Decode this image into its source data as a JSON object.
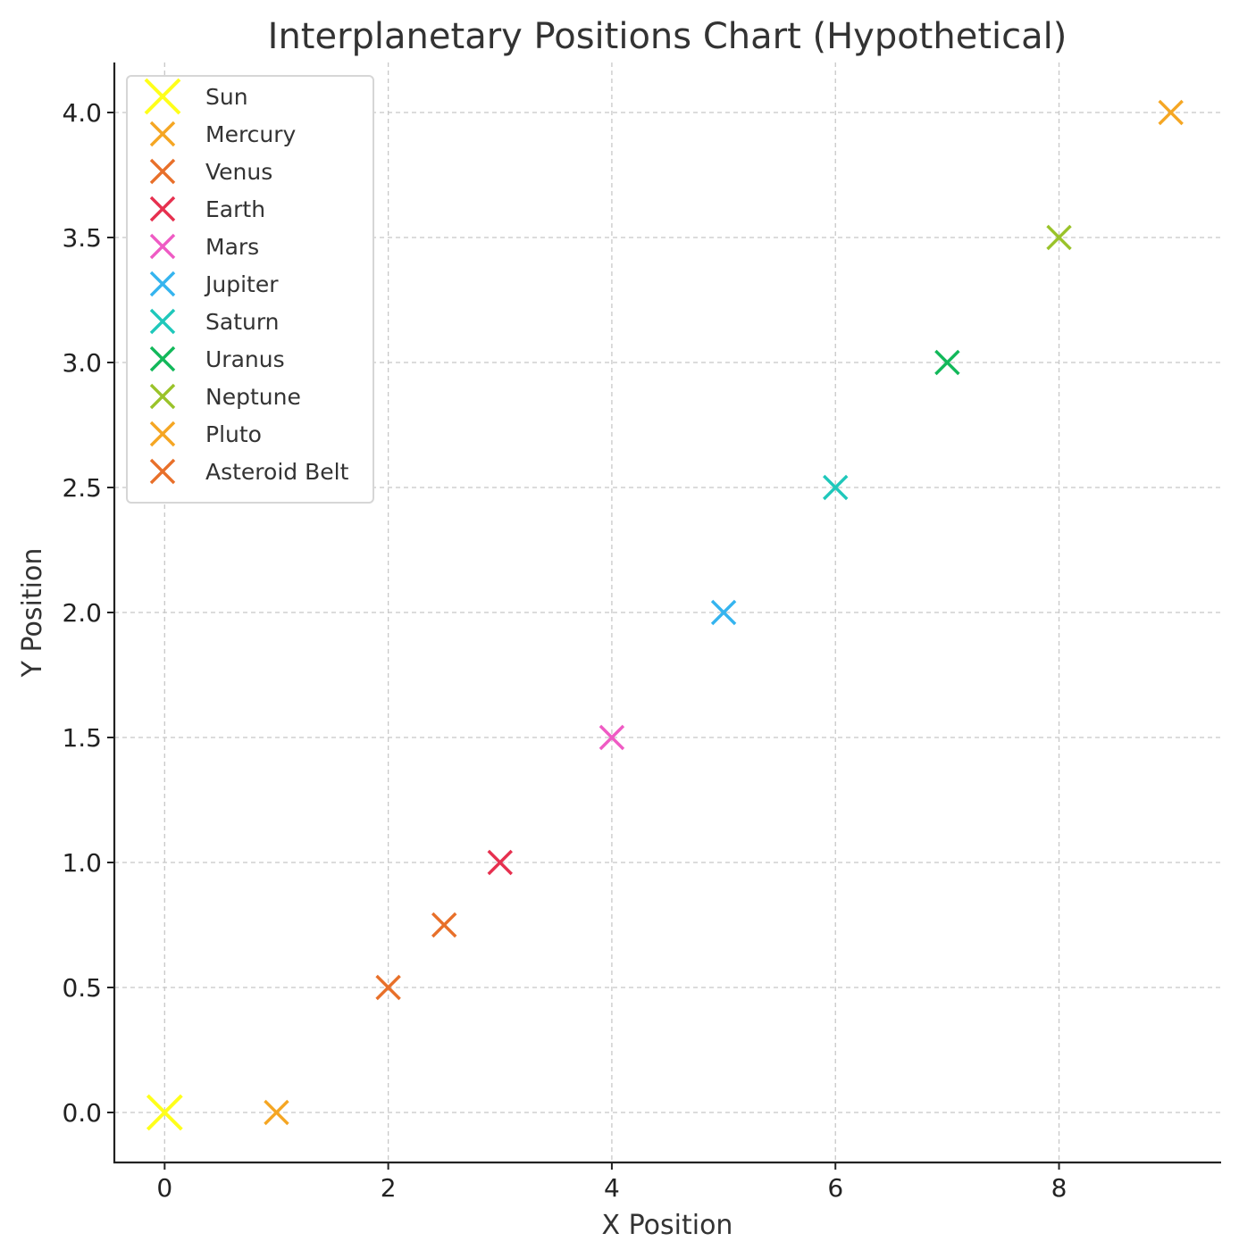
{
  "chart_data": {
    "type": "scatter",
    "title": "Interplanetary Positions Chart (Hypothetical)",
    "xlabel": "X Position",
    "ylabel": "Y Position",
    "xlim": [
      -0.45,
      9.45
    ],
    "ylim": [
      -0.2,
      4.2
    ],
    "xticks": [
      0,
      2,
      4,
      6,
      8
    ],
    "xtick_labels": [
      "0",
      "2",
      "4",
      "6",
      "8"
    ],
    "yticks": [
      0.0,
      0.5,
      1.0,
      1.5,
      2.0,
      2.5,
      3.0,
      3.5,
      4.0
    ],
    "ytick_labels": [
      "0.0",
      "0.5",
      "1.0",
      "1.5",
      "2.0",
      "2.5",
      "3.0",
      "3.5",
      "4.0"
    ],
    "grid": true,
    "legend_position": "top-left",
    "marker": "x",
    "series": [
      {
        "name": "Sun",
        "x": 0,
        "y": 0,
        "color": "#ffff1a",
        "size": "large"
      },
      {
        "name": "Mercury",
        "x": 1,
        "y": 0,
        "color": "#f5a623",
        "size": "normal"
      },
      {
        "name": "Venus",
        "x": 2,
        "y": 0.5,
        "color": "#e8702a",
        "size": "normal"
      },
      {
        "name": "Earth",
        "x": 3,
        "y": 1.0,
        "color": "#e6304f",
        "size": "normal"
      },
      {
        "name": "Mars",
        "x": 4,
        "y": 1.5,
        "color": "#ef5bc4",
        "size": "normal"
      },
      {
        "name": "Jupiter",
        "x": 5,
        "y": 2.0,
        "color": "#35b4ef",
        "size": "normal"
      },
      {
        "name": "Saturn",
        "x": 6,
        "y": 2.5,
        "color": "#1fc8bb",
        "size": "normal"
      },
      {
        "name": "Uranus",
        "x": 7,
        "y": 3.0,
        "color": "#12b85a",
        "size": "normal"
      },
      {
        "name": "Neptune",
        "x": 8,
        "y": 3.5,
        "color": "#9ac32a",
        "size": "normal"
      },
      {
        "name": "Pluto",
        "x": 9,
        "y": 4.0,
        "color": "#f5a623",
        "size": "normal"
      },
      {
        "name": "Asteroid Belt",
        "x": 2.5,
        "y": 0.75,
        "color": "#e8702a",
        "size": "normal"
      }
    ]
  }
}
